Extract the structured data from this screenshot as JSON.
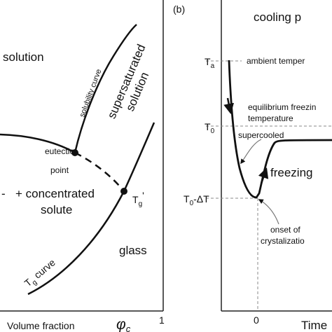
{
  "left_panel": {
    "region_solution": "solution",
    "region_supersaturated_line1": "supersaturated",
    "region_supersaturated_line2": "solution",
    "solubility_curve_label": "solubility curve",
    "eutectic_line1": "eutectic",
    "eutectic_line2": "point",
    "ice_plus_line1": "+ concentrated",
    "ice_plus_line2": "solute",
    "left_dash": "-",
    "tg_prime_main": "T",
    "tg_prime_sub": "g",
    "tg_prime_mark": "'",
    "tg_curve_main": "T",
    "tg_curve_sub": "g",
    "tg_curve_rest": " curve",
    "glass_label": "glass",
    "x_axis_label": "Volume fraction",
    "x_axis_symbol": "φ",
    "x_axis_symbol_sub": "c",
    "x_tick_1": "1"
  },
  "right_panel": {
    "panel_letter": "(b)",
    "title": "cooling p",
    "Ta_main": "T",
    "Ta_sub": "a",
    "ambient_label": "ambient temper",
    "equilibrium_line1": "equilibrium freezin",
    "equilibrium_line2": "temperature",
    "T0_main": "T",
    "T0_sub": "0",
    "supercooled_label": "supercooled",
    "freezing_label": "freezing",
    "T0dT_main": "T",
    "T0dT_sub": "0",
    "T0dT_rest": "-ΔT",
    "onset_line1": "onset of",
    "onset_line2": "crystalizatio",
    "x_tick_0": "0",
    "x_axis_label": "Time"
  }
}
